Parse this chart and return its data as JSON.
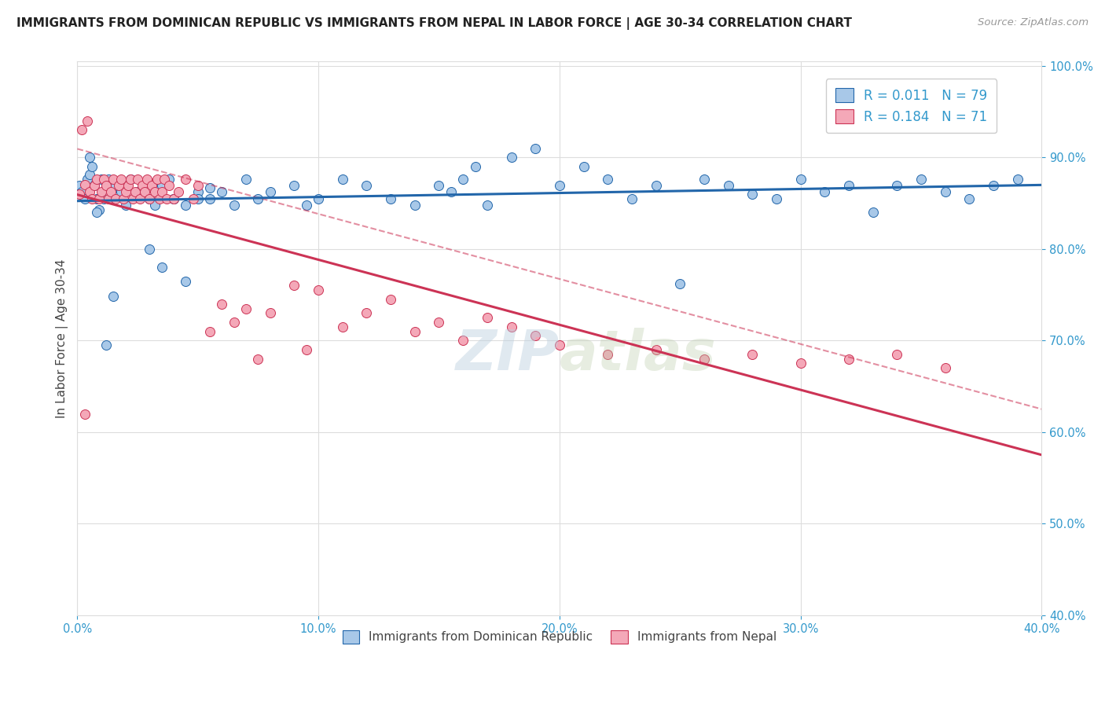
{
  "title": "IMMIGRANTS FROM DOMINICAN REPUBLIC VS IMMIGRANTS FROM NEPAL IN LABOR FORCE | AGE 30-34 CORRELATION CHART",
  "source": "Source: ZipAtlas.com",
  "ylabel": "In Labor Force | Age 30-34",
  "r_blue": 0.011,
  "n_blue": 79,
  "r_pink": 0.184,
  "n_pink": 71,
  "legend_blue": "Immigrants from Dominican Republic",
  "legend_pink": "Immigrants from Nepal",
  "xlim": [
    0.0,
    0.4
  ],
  "ylim": [
    0.4,
    1.005
  ],
  "blue_color": "#a8c8e8",
  "pink_color": "#f4a8b8",
  "blue_line_color": "#2266aa",
  "pink_line_color": "#cc3355",
  "background": "#ffffff",
  "blue_dots_x": [
    0.001,
    0.002,
    0.003,
    0.004,
    0.005,
    0.006,
    0.007,
    0.008,
    0.009,
    0.01,
    0.011,
    0.012,
    0.013,
    0.015,
    0.016,
    0.018,
    0.02,
    0.022,
    0.025,
    0.027,
    0.03,
    0.032,
    0.035,
    0.038,
    0.04,
    0.045,
    0.05,
    0.055,
    0.06,
    0.065,
    0.07,
    0.075,
    0.08,
    0.09,
    0.095,
    0.1,
    0.11,
    0.12,
    0.13,
    0.14,
    0.15,
    0.155,
    0.16,
    0.165,
    0.17,
    0.18,
    0.19,
    0.2,
    0.21,
    0.22,
    0.23,
    0.24,
    0.25,
    0.26,
    0.27,
    0.28,
    0.29,
    0.3,
    0.31,
    0.32,
    0.33,
    0.34,
    0.35,
    0.36,
    0.37,
    0.38,
    0.39,
    0.005,
    0.008,
    0.012,
    0.015,
    0.02,
    0.025,
    0.03,
    0.035,
    0.04,
    0.045,
    0.05,
    0.055
  ],
  "blue_dots_y": [
    0.869,
    0.862,
    0.855,
    0.876,
    0.881,
    0.89,
    0.869,
    0.855,
    0.843,
    0.876,
    0.855,
    0.869,
    0.876,
    0.855,
    0.869,
    0.862,
    0.848,
    0.876,
    0.862,
    0.869,
    0.855,
    0.848,
    0.869,
    0.876,
    0.855,
    0.848,
    0.862,
    0.855,
    0.862,
    0.848,
    0.876,
    0.855,
    0.862,
    0.869,
    0.848,
    0.855,
    0.876,
    0.869,
    0.855,
    0.848,
    0.869,
    0.862,
    0.876,
    0.89,
    0.848,
    0.9,
    0.91,
    0.869,
    0.89,
    0.876,
    0.855,
    0.869,
    0.762,
    0.876,
    0.869,
    0.86,
    0.855,
    0.876,
    0.862,
    0.869,
    0.84,
    0.869,
    0.876,
    0.862,
    0.855,
    0.869,
    0.876,
    0.9,
    0.84,
    0.695,
    0.748,
    0.87,
    0.86,
    0.8,
    0.78,
    0.855,
    0.765,
    0.855,
    0.867
  ],
  "pink_dots_x": [
    0.001,
    0.002,
    0.003,
    0.004,
    0.005,
    0.006,
    0.007,
    0.008,
    0.009,
    0.01,
    0.011,
    0.012,
    0.013,
    0.014,
    0.015,
    0.016,
    0.017,
    0.018,
    0.019,
    0.02,
    0.021,
    0.022,
    0.023,
    0.024,
    0.025,
    0.026,
    0.027,
    0.028,
    0.029,
    0.03,
    0.031,
    0.032,
    0.033,
    0.034,
    0.035,
    0.036,
    0.037,
    0.038,
    0.04,
    0.042,
    0.045,
    0.048,
    0.05,
    0.055,
    0.06,
    0.065,
    0.07,
    0.075,
    0.08,
    0.09,
    0.095,
    0.1,
    0.11,
    0.12,
    0.13,
    0.14,
    0.15,
    0.16,
    0.17,
    0.18,
    0.19,
    0.2,
    0.22,
    0.24,
    0.26,
    0.28,
    0.3,
    0.32,
    0.34,
    0.36,
    0.003
  ],
  "pink_dots_y": [
    0.86,
    0.93,
    0.87,
    0.94,
    0.862,
    0.855,
    0.869,
    0.876,
    0.855,
    0.862,
    0.876,
    0.869,
    0.855,
    0.862,
    0.876,
    0.855,
    0.869,
    0.876,
    0.855,
    0.862,
    0.869,
    0.876,
    0.855,
    0.862,
    0.876,
    0.855,
    0.869,
    0.862,
    0.876,
    0.855,
    0.869,
    0.862,
    0.876,
    0.855,
    0.862,
    0.876,
    0.855,
    0.869,
    0.855,
    0.862,
    0.876,
    0.855,
    0.869,
    0.71,
    0.74,
    0.72,
    0.735,
    0.68,
    0.73,
    0.76,
    0.69,
    0.755,
    0.715,
    0.73,
    0.745,
    0.71,
    0.72,
    0.7,
    0.725,
    0.715,
    0.705,
    0.695,
    0.685,
    0.69,
    0.68,
    0.685,
    0.675,
    0.68,
    0.685,
    0.67,
    0.62
  ],
  "watermark": "ZIPatlas",
  "grid_color": "#dddddd",
  "tick_color": "#3399cc",
  "title_color": "#222222",
  "source_color": "#999999"
}
